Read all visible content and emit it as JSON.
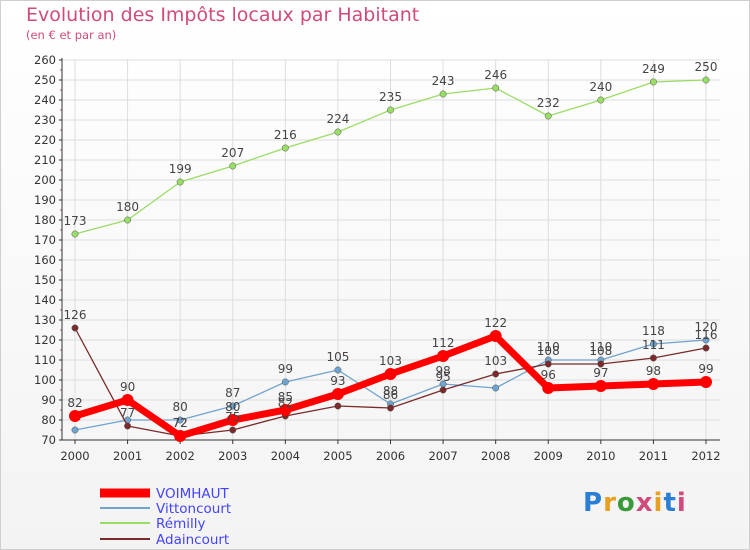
{
  "title": "Evolution des Impôts locaux par Habitant",
  "subtitle": "(en € et par an)",
  "logo": "Proxiti",
  "colors": {
    "title": "#d04b7b",
    "axis": "#333333",
    "grid": "#dddddd",
    "label": "#333333"
  },
  "chart_data": {
    "type": "line",
    "x": [
      "2000",
      "2001",
      "2002",
      "2003",
      "2004",
      "2005",
      "2006",
      "2007",
      "2008",
      "2009",
      "2010",
      "2011",
      "2012"
    ],
    "ylim": [
      70,
      260
    ],
    "yticks": [
      70,
      80,
      90,
      100,
      110,
      120,
      130,
      140,
      150,
      160,
      170,
      180,
      190,
      200,
      210,
      220,
      230,
      240,
      250,
      260
    ],
    "grid": true,
    "legend_position": "bottom-left",
    "series": [
      {
        "name": "VOIMHAUT",
        "color": "#ff0000",
        "text_color": "#4444ff",
        "values": [
          82,
          90,
          72,
          80,
          85,
          93,
          103,
          112,
          122,
          96,
          97,
          98,
          99
        ],
        "labels": [
          "82",
          "90",
          "72",
          "80",
          "85",
          "93",
          "103",
          "112",
          "122",
          "96",
          "97",
          "98",
          "99"
        ]
      },
      {
        "name": "Vittoncourt",
        "color": "#6fa3d0",
        "text_color": "#4444ff",
        "values": [
          75,
          80,
          80,
          87,
          99,
          105,
          88,
          98,
          96,
          110,
          110,
          118,
          120
        ],
        "labels": [
          "",
          "",
          "80",
          "87",
          "99",
          "105",
          "88",
          "98",
          "",
          "110",
          "110",
          "118",
          "120"
        ]
      },
      {
        "name": "Rémilly",
        "color": "#99dd66",
        "text_color": "#4444ff",
        "values": [
          173,
          180,
          199,
          207,
          216,
          224,
          235,
          243,
          246,
          232,
          240,
          249,
          250
        ],
        "labels": [
          "173",
          "180",
          "199",
          "207",
          "216",
          "224",
          "235",
          "243",
          "246",
          "232",
          "240",
          "249",
          "250"
        ]
      },
      {
        "name": "Adaincourt",
        "color": "#7a2a2a",
        "text_color": "#4444ff",
        "values": [
          126,
          77,
          72,
          75,
          82,
          87,
          86,
          95,
          103,
          108,
          108,
          111,
          116
        ],
        "labels": [
          "126",
          "77",
          "72",
          "75",
          "82",
          "",
          "86",
          "95",
          "103",
          "108",
          "108",
          "111",
          "116"
        ]
      }
    ]
  }
}
